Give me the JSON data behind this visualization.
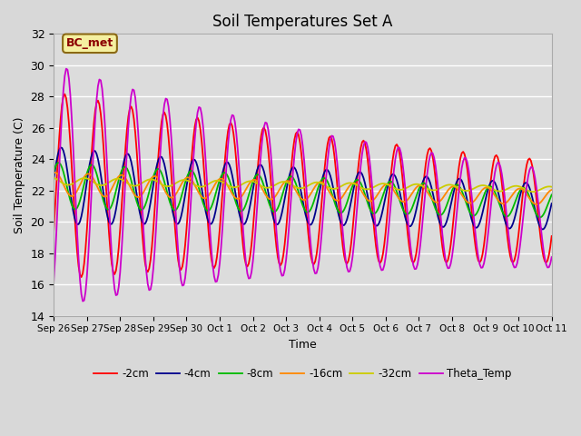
{
  "title": "Soil Temperatures Set A",
  "xlabel": "Time",
  "ylabel": "Soil Temperature (C)",
  "ylim": [
    14,
    32
  ],
  "background_color": "#d8d8d8",
  "plot_bg_color": "#dcdcdc",
  "annotation_text": "BC_met",
  "annotation_bg": "#f5f0a0",
  "annotation_border": "#8b6914",
  "annotation_text_color": "#8b0000",
  "series": {
    "-2cm": {
      "color": "#ff0000",
      "lw": 1.3
    },
    "-4cm": {
      "color": "#00008b",
      "lw": 1.3
    },
    "-8cm": {
      "color": "#00bb00",
      "lw": 1.3
    },
    "-16cm": {
      "color": "#ff8800",
      "lw": 1.3
    },
    "-32cm": {
      "color": "#cccc00",
      "lw": 1.3
    },
    "Theta_Temp": {
      "color": "#cc00cc",
      "lw": 1.3
    }
  },
  "xtick_labels": [
    "Sep 26",
    "Sep 27",
    "Sep 28",
    "Sep 29",
    "Sep 30",
    "Oct 1",
    "Oct 2",
    "Oct 3",
    "Oct 4",
    "Oct 5",
    "Oct 6",
    "Oct 7",
    "Oct 8",
    "Oct 9",
    "Oct 10",
    "Oct 11"
  ],
  "ytick_labels": [
    14,
    16,
    18,
    20,
    22,
    24,
    26,
    28,
    30,
    32
  ],
  "legend_ncol": 6,
  "figsize": [
    6.4,
    4.8
  ],
  "dpi": 100
}
